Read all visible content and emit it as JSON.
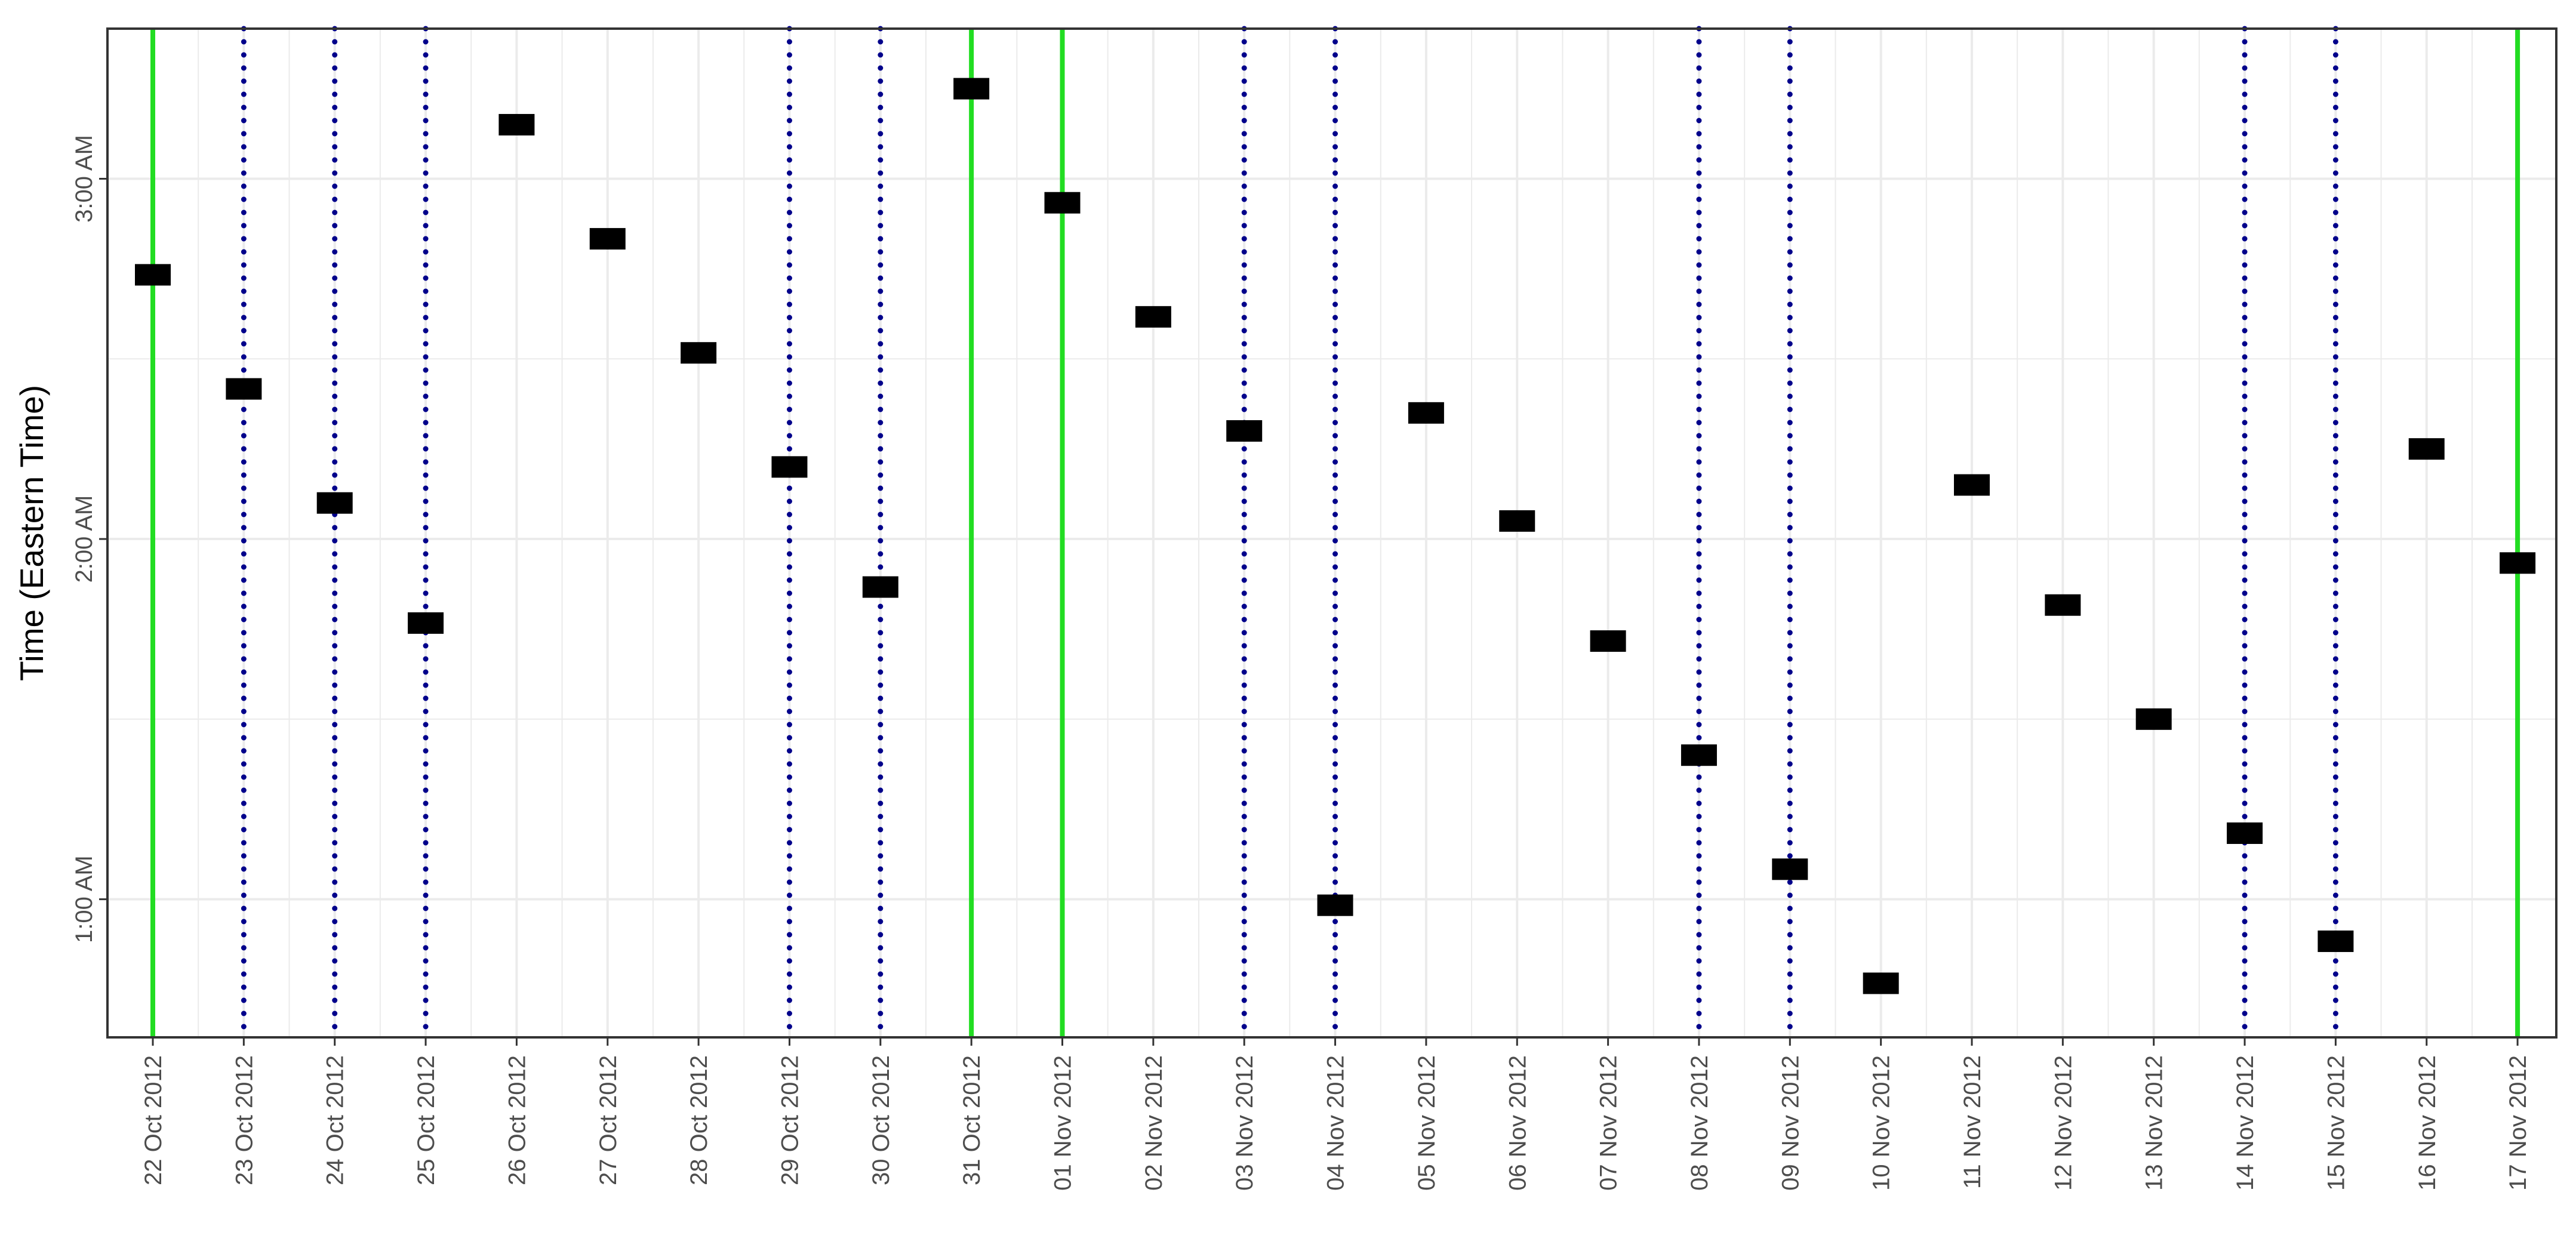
{
  "chart_data": {
    "type": "scatter",
    "title": "",
    "xlabel": "",
    "ylabel": "Time (Eastern Time)",
    "x": [
      "22 Oct 2012",
      "23 Oct 2012",
      "24 Oct 2012",
      "25 Oct 2012",
      "26 Oct 2012",
      "27 Oct 2012",
      "28 Oct 2012",
      "29 Oct 2012",
      "30 Oct 2012",
      "31 Oct 2012",
      "01 Nov 2012",
      "02 Nov 2012",
      "03 Nov 2012",
      "04 Nov 2012",
      "05 Nov 2012",
      "06 Nov 2012",
      "07 Nov 2012",
      "08 Nov 2012",
      "09 Nov 2012",
      "10 Nov 2012",
      "11 Nov 2012",
      "12 Nov 2012",
      "13 Nov 2012",
      "14 Nov 2012",
      "15 Nov 2012",
      "16 Nov 2012",
      "17 Nov 2012"
    ],
    "y": [
      "2:44 AM",
      "2:25 AM",
      "2:06 AM",
      "1:46 AM",
      "3:09 AM",
      "2:50 AM",
      "2:31 AM",
      "2:12 AM",
      "1:52 AM",
      "3:15 AM",
      "2:56 AM",
      "2:37 AM",
      "2:18 AM",
      "0:59 AM",
      "2:21 AM",
      "2:03 AM",
      "1:43 AM",
      "1:24 AM",
      "1:05 AM",
      "0:46 AM",
      "2:09 AM",
      "1:49 AM",
      "1:30 AM",
      "1:11 AM",
      "0:53 AM",
      "2:15 AM",
      "1:56 AM"
    ],
    "yticks": [
      "1:00 AM",
      "2:00 AM",
      "3:00 AM"
    ],
    "ylim": [
      "0:37 AM",
      "3:25 AM"
    ],
    "grid": true,
    "marker": "rectangle",
    "marker_color": "#000000",
    "reference_lines": {
      "solid_green": [
        "22 Oct 2012",
        "31 Oct 2012",
        "01 Nov 2012",
        "17 Nov 2012"
      ],
      "dotted_navy": [
        "23 Oct 2012",
        "24 Oct 2012",
        "25 Oct 2012",
        "29 Oct 2012",
        "30 Oct 2012",
        "03 Nov 2012",
        "04 Nov 2012",
        "08 Nov 2012",
        "09 Nov 2012",
        "14 Nov 2012",
        "15 Nov 2012"
      ]
    },
    "colors": {
      "solid_green": "#22dd22",
      "dotted_navy": "#00008b",
      "grid": "#ebebeb",
      "panel_border": "#333333"
    }
  }
}
